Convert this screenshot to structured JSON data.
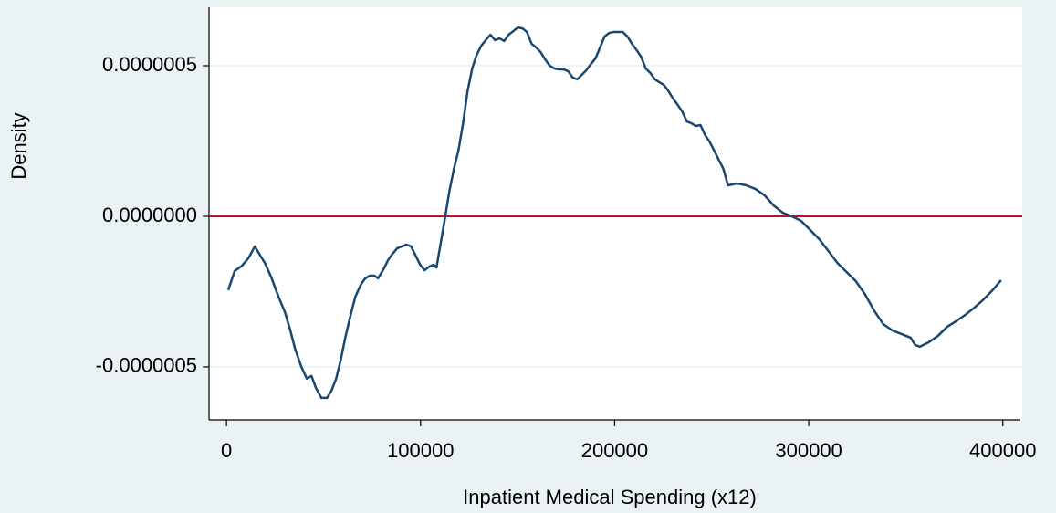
{
  "chart_data": {
    "type": "line",
    "xlabel": "Inpatient Medical Spending (x12)",
    "ylabel": "Density",
    "xlim": [
      -9000,
      410000
    ],
    "ylim": [
      -6.76e-07,
      6.94e-07
    ],
    "xticks": [
      0,
      100000,
      200000,
      300000,
      400000
    ],
    "yticks": [
      {
        "value": -5e-07,
        "label": "-0.0000005"
      },
      {
        "value": 0,
        "label": "0.0000000"
      },
      {
        "value": 5e-07,
        "label": "0.0000005"
      }
    ],
    "grid": true,
    "reference_lines": [
      {
        "value": 0,
        "color": "#c0102e"
      }
    ],
    "series": [
      {
        "color": "#1a476f",
        "x": [
          900,
          4200,
          8000,
          11300,
          14600,
          17400,
          19800,
          23100,
          26800,
          30100,
          32900,
          35300,
          38600,
          41400,
          43800,
          46100,
          48900,
          51800,
          54100,
          56500,
          58800,
          61200,
          64000,
          66400,
          69200,
          71500,
          73900,
          76200,
          78100,
          80900,
          83300,
          85600,
          88000,
          90400,
          92700,
          95100,
          97400,
          99800,
          102100,
          104500,
          106800,
          108200,
          110100,
          112500,
          114800,
          117200,
          119500,
          121900,
          124200,
          126600,
          128900,
          131300,
          133600,
          136000,
          138400,
          140700,
          143100,
          145400,
          147800,
          150100,
          152500,
          154800,
          157200,
          159500,
          161900,
          164200,
          166600,
          168900,
          171300,
          173600,
          176000,
          178400,
          180700,
          183100,
          185400,
          187800,
          190100,
          192500,
          194800,
          197200,
          199500,
          204200,
          206600,
          208900,
          211300,
          213600,
          216000,
          218400,
          220700,
          223100,
          225400,
          227800,
          230100,
          232500,
          234800,
          237200,
          239500,
          241900,
          244200,
          246600,
          248900,
          251300,
          253600,
          256000,
          258400,
          263100,
          267800,
          272500,
          277200,
          281900,
          286600,
          291300,
          296000,
          300700,
          305400,
          310100,
          314800,
          319500,
          324200,
          328900,
          333600,
          338400,
          343100,
          347800,
          352500,
          354800,
          357200,
          361900,
          366600,
          371300,
          376000,
          380700,
          385400,
          390100,
          394800,
          399100
        ],
        "values": [
          -2.45e-07,
          -1.82e-07,
          -1.64e-07,
          -1.39e-07,
          -1e-07,
          -1.3e-07,
          -1.55e-07,
          -2.03e-07,
          -2.67e-07,
          -3.18e-07,
          -3.79e-07,
          -4.39e-07,
          -5e-07,
          -5.39e-07,
          -5.3e-07,
          -5.7e-07,
          -6.03e-07,
          -6.03e-07,
          -5.79e-07,
          -5.39e-07,
          -4.79e-07,
          -4.03e-07,
          -3.27e-07,
          -2.67e-07,
          -2.27e-07,
          -2.06e-07,
          -1.97e-07,
          -1.97e-07,
          -2.06e-07,
          -1.76e-07,
          -1.45e-07,
          -1.24e-07,
          -1.06e-07,
          -1e-07,
          -9.4e-08,
          -1e-07,
          -1.3e-07,
          -1.61e-07,
          -1.79e-07,
          -1.67e-07,
          -1.61e-07,
          -1.7e-07,
          -1e-07,
          -9e-09,
          8.2e-08,
          1.58e-07,
          2.18e-07,
          3.09e-07,
          4.15e-07,
          4.91e-07,
          5.36e-07,
          5.67e-07,
          5.85e-07,
          6.03e-07,
          5.85e-07,
          5.91e-07,
          5.82e-07,
          6.03e-07,
          6.15e-07,
          6.27e-07,
          6.24e-07,
          6.12e-07,
          5.73e-07,
          5.61e-07,
          5.45e-07,
          5.21e-07,
          5e-07,
          4.91e-07,
          4.88e-07,
          4.88e-07,
          4.82e-07,
          4.61e-07,
          4.55e-07,
          4.7e-07,
          4.85e-07,
          5.06e-07,
          5.24e-07,
          5.61e-07,
          5.97e-07,
          6.09e-07,
          6.12e-07,
          6.12e-07,
          5.97e-07,
          5.73e-07,
          5.52e-07,
          5.3e-07,
          4.91e-07,
          4.76e-07,
          4.55e-07,
          4.45e-07,
          4.36e-07,
          4.15e-07,
          3.91e-07,
          3.7e-07,
          3.48e-07,
          3.15e-07,
          3.09e-07,
          3e-07,
          3.03e-07,
          2.7e-07,
          2.48e-07,
          2.18e-07,
          1.88e-07,
          1.58e-07,
          1.03e-07,
          1.09e-07,
          1.03e-07,
          9.1e-08,
          7e-08,
          3.6e-08,
          1.2e-08,
          0,
          -1.5e-08,
          -4.5e-08,
          -7.6e-08,
          -1.15e-07,
          -1.55e-07,
          -1.85e-07,
          -2.15e-07,
          -2.58e-07,
          -3.12e-07,
          -3.58e-07,
          -3.79e-07,
          -3.91e-07,
          -4.03e-07,
          -4.27e-07,
          -4.33e-07,
          -4.18e-07,
          -3.97e-07,
          -3.67e-07,
          -3.48e-07,
          -3.27e-07,
          -3.03e-07,
          -2.76e-07,
          -2.45e-07,
          -2.12e-07
        ]
      }
    ]
  }
}
